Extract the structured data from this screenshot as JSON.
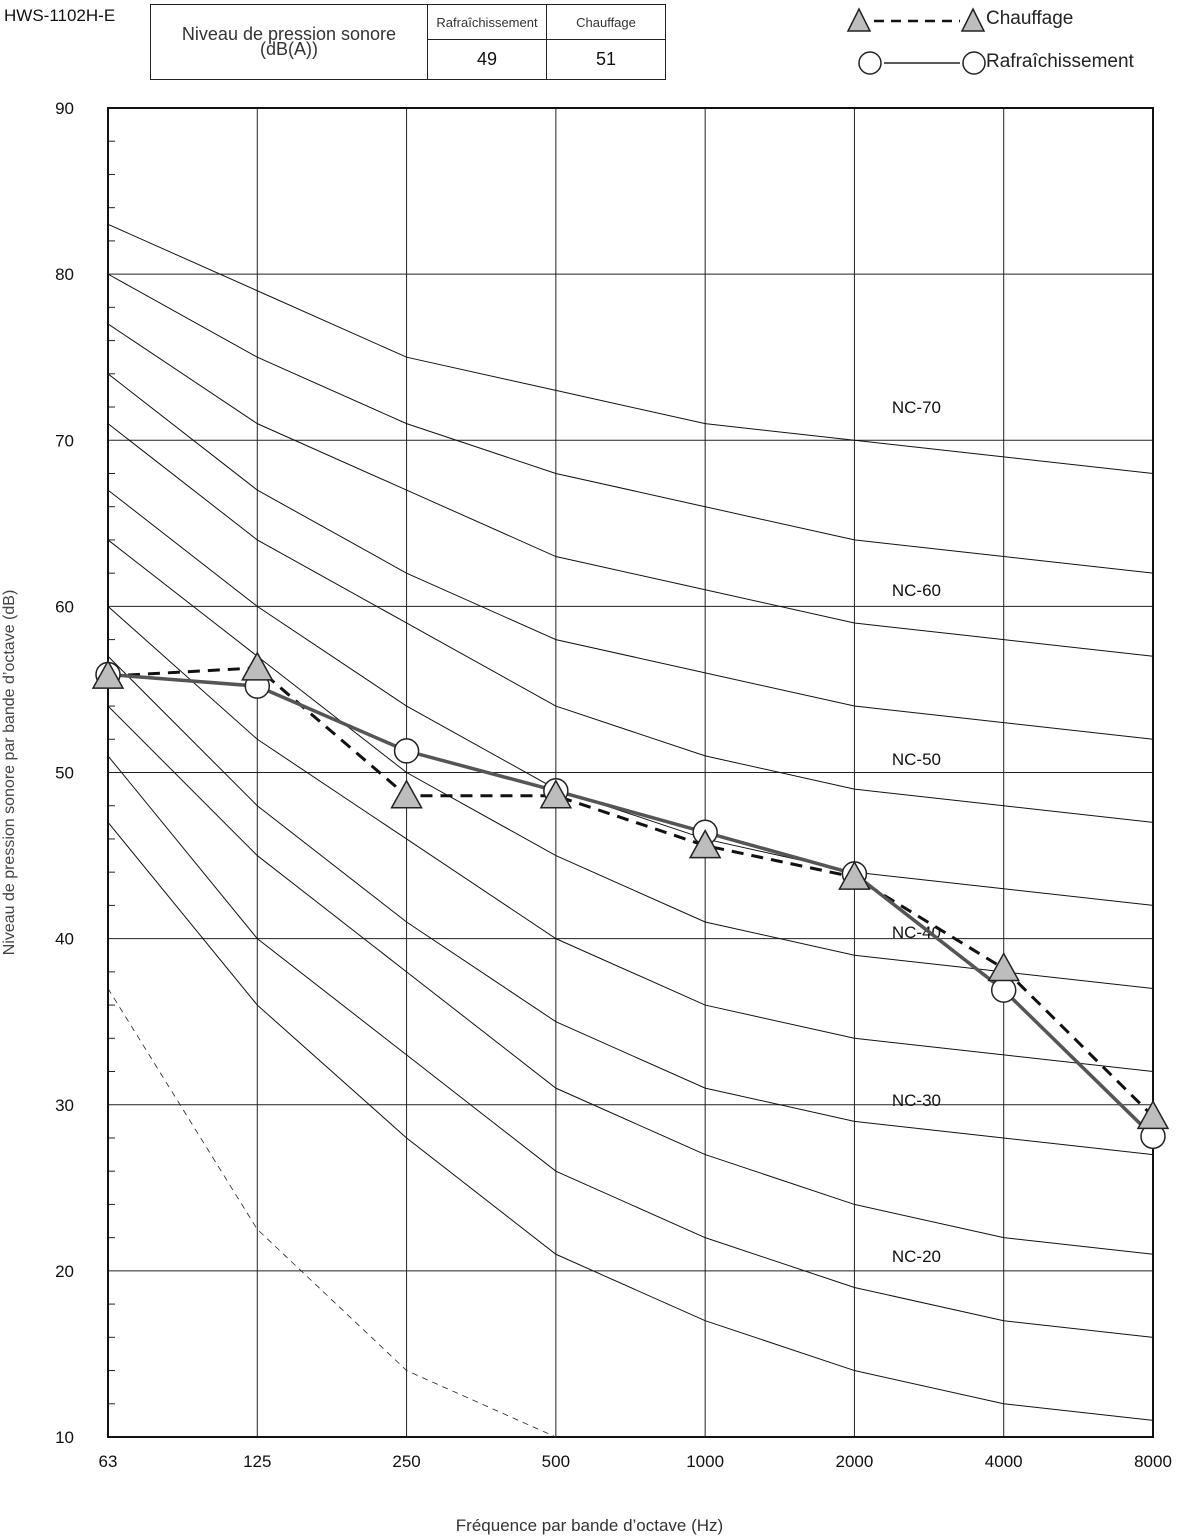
{
  "model": "HWS-1102H-E",
  "level_table": {
    "header": "Niveau de pression sonore (dB(A))",
    "modes": [
      "Rafraîchissement",
      "Chauffage"
    ],
    "values": [
      "49",
      "51"
    ]
  },
  "legend": [
    {
      "name": "Chauffage",
      "marker": "triangle-icon",
      "line": "dashed"
    },
    {
      "name": "Rafraîchissement",
      "marker": "circle-icon",
      "line": "solid"
    }
  ],
  "chart_data": {
    "type": "line",
    "x": [
      "63",
      "125",
      "250",
      "500",
      "1000",
      "2000",
      "4000",
      "8000"
    ],
    "xlabel": "Fréquence par bande d’octave (Hz)",
    "ylabel": "Niveau de pression sonore par bande d’octave (dB)",
    "ylim": [
      10,
      90
    ],
    "yticks": [
      10,
      20,
      30,
      40,
      50,
      60,
      70,
      80,
      90
    ],
    "grid": true,
    "series": [
      {
        "name": "Chauffage",
        "values": [
          55.8,
          56.3,
          48.6,
          48.6,
          45.6,
          43.7,
          38.2,
          29.3
        ],
        "color": "#111111",
        "style": "dashed",
        "marker": "triangle"
      },
      {
        "name": "Rafraîchissement",
        "values": [
          55.9,
          55.2,
          51.3,
          48.9,
          46.4,
          43.9,
          36.9,
          28.1
        ],
        "color": "#555555",
        "style": "solid",
        "marker": "circle"
      }
    ],
    "nc_curves": [
      {
        "values": [
          83,
          79,
          75,
          73,
          71,
          70,
          69,
          68
        ]
      },
      {
        "values": [
          80,
          75,
          71,
          68,
          66,
          64,
          63,
          62
        ]
      },
      {
        "values": [
          77,
          71,
          67,
          63,
          61,
          59,
          58,
          57
        ]
      },
      {
        "values": [
          74,
          67,
          62,
          58,
          56,
          54,
          53,
          52
        ]
      },
      {
        "values": [
          71,
          64,
          59,
          54,
          51,
          49,
          48,
          47
        ]
      },
      {
        "values": [
          67,
          60,
          54,
          49,
          46,
          44,
          43,
          42
        ]
      },
      {
        "values": [
          64,
          57,
          50,
          45,
          41,
          39,
          38,
          37
        ]
      },
      {
        "values": [
          60,
          52,
          46,
          40,
          36,
          34,
          33,
          32
        ]
      },
      {
        "values": [
          57,
          48,
          41,
          35,
          31,
          29,
          28,
          27
        ]
      },
      {
        "values": [
          54,
          45,
          38,
          31,
          27,
          24,
          22,
          21
        ]
      },
      {
        "values": [
          51,
          40,
          33,
          26,
          22,
          19,
          17,
          16
        ]
      },
      {
        "values": [
          47,
          36,
          28,
          21,
          17,
          14,
          12,
          11
        ]
      }
    ],
    "threshold_curve": {
      "values": [
        37,
        22.5,
        14,
        10
      ],
      "style": "dashed"
    },
    "annotations": [
      {
        "text": "NC-70",
        "x": "2000",
        "y": 72
      },
      {
        "text": "NC-60",
        "x": "2000",
        "y": 61
      },
      {
        "text": "NC-50",
        "x": "2000",
        "y": 50.8
      },
      {
        "text": "NC-40",
        "x": "2000",
        "y": 40.4
      },
      {
        "text": "NC-30",
        "x": "2000",
        "y": 30.3
      },
      {
        "text": "NC-20",
        "x": "2000",
        "y": 20.9
      }
    ]
  }
}
